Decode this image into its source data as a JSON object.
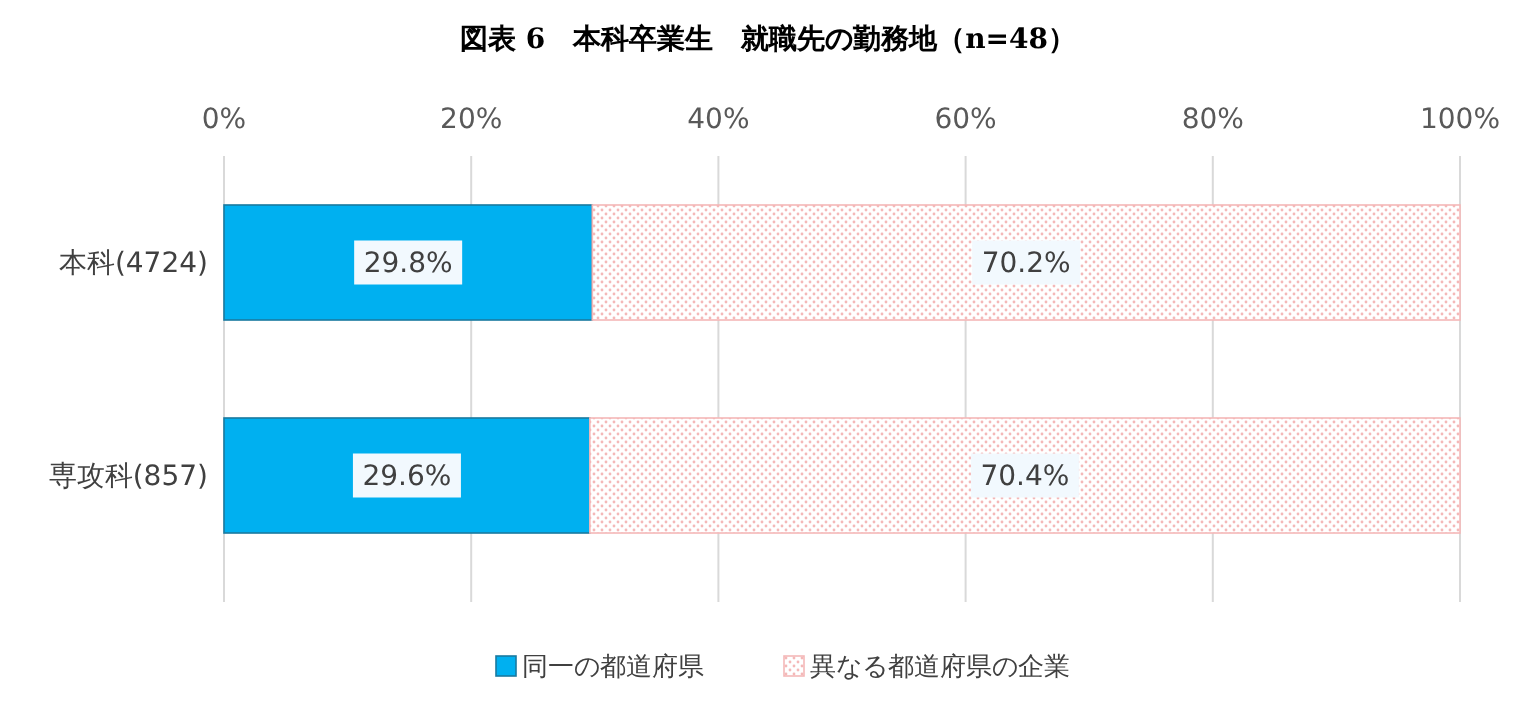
{
  "chart_data": {
    "type": "bar",
    "orientation": "horizontal",
    "stacked": true,
    "title": "図表 6　本科卒業生　就職先の勤務地（n=48）",
    "categories": [
      "本科(4724)",
      "専攻科(857)"
    ],
    "series": [
      {
        "name": "同一の都道府県",
        "color": "#00b0f0",
        "values": [
          29.8,
          29.6
        ],
        "value_labels": [
          "29.8%",
          "29.6%"
        ]
      },
      {
        "name": "異なる都道府県の企業",
        "color": "#f4b8b8",
        "values": [
          70.2,
          70.4
        ],
        "value_labels": [
          "70.2%",
          "70.4%"
        ]
      }
    ],
    "xlim": [
      0,
      100
    ],
    "xticks": [
      {
        "value": 0,
        "label": "0%"
      },
      {
        "value": 20,
        "label": "20%"
      },
      {
        "value": 40,
        "label": "40%"
      },
      {
        "value": 60,
        "label": "60%"
      },
      {
        "value": 80,
        "label": "80%"
      },
      {
        "value": 100,
        "label": "100%"
      }
    ],
    "grid": "x",
    "legend": "bottom"
  }
}
